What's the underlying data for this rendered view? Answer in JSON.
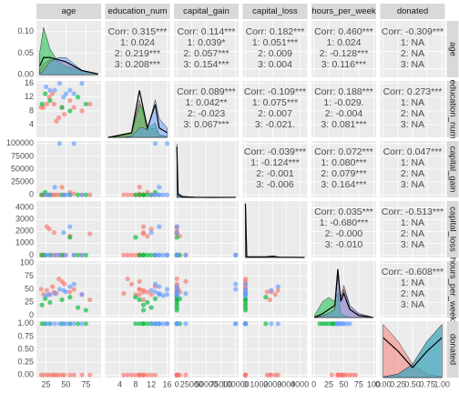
{
  "chart_data": {
    "type": "pairs",
    "group_colors": [
      "#F8766D",
      "#00BA38",
      "#619CFF"
    ],
    "variables": [
      {
        "name": "age",
        "lim": [
          13,
          94
        ],
        "ticks": [
          25,
          50,
          75
        ],
        "density": {
          "ylim": [
            -0.006,
            0.125
          ],
          "yticks": [
            {
              "value": 0,
              "label": "0.00"
            },
            {
              "value": 0.05,
              "label": "0.05"
            },
            {
              "value": 0.1,
              "label": "0.10"
            }
          ],
          "x": [
            17,
            22,
            30,
            40,
            50,
            60,
            70,
            90
          ],
          "series": [
            {
              "color": "#F8766D",
              "values": [
                0.01,
                0.025,
                0.035,
                0.035,
                0.03,
                0.02,
                0.01,
                0.002
              ]
            },
            {
              "color": "#00BA38",
              "values": [
                0.05,
                0.11,
                0.06,
                0.03,
                0.02,
                0.015,
                0.008,
                0.002
              ]
            },
            {
              "color": "#619CFF",
              "values": [
                0.002,
                0.01,
                0.03,
                0.04,
                0.04,
                0.025,
                0.01,
                0.001
              ]
            }
          ],
          "values": [
            0.02,
            0.04,
            0.04,
            0.035,
            0.03,
            0.02,
            0.01,
            0.002
          ]
        }
      },
      {
        "name": "education_num",
        "lim": [
          0.3,
          16.7
        ],
        "ticks": [
          4,
          8,
          12,
          16
        ],
        "density": {
          "ylim": [
            0,
            0.6
          ],
          "x": [
            1,
            4,
            7,
            9,
            10,
            11,
            13,
            14,
            16
          ],
          "series": [
            {
              "color": "#F8766D",
              "values": [
                0,
                0.03,
                0.05,
                0.4,
                0.25,
                0.08,
                0.1,
                0.02,
                0
              ]
            },
            {
              "color": "#00BA38",
              "values": [
                0,
                0.02,
                0.04,
                0.35,
                0.3,
                0.1,
                0.15,
                0.03,
                0.01
              ]
            },
            {
              "color": "#619CFF",
              "values": [
                0,
                0,
                0.01,
                0.1,
                0.1,
                0.08,
                0.4,
                0.2,
                0.1
              ]
            }
          ],
          "values": [
            0,
            0.02,
            0.05,
            0.5,
            0.3,
            0.1,
            0.35,
            0.1,
            0.05
          ]
        }
      },
      {
        "name": "capital_gain",
        "lim": [
          -5000,
          105000
        ],
        "ticks": [
          0,
          25000,
          50000,
          75000,
          100000
        ],
        "density": {
          "ylim": [
            0,
            1
          ],
          "x": [
            0,
            2000,
            10000,
            30000,
            60000,
            100000
          ],
          "series": [
            {
              "color": "#F8766D",
              "values": [
                0.95,
                0.04,
                0.005,
                0.001,
                0,
                0
              ]
            },
            {
              "color": "#00BA38",
              "values": [
                0.95,
                0.03,
                0.005,
                0,
                0,
                0
              ]
            },
            {
              "color": "#619CFF",
              "values": [
                0.8,
                0.08,
                0.02,
                0.005,
                0.001,
                0.003
              ]
            }
          ],
          "values": [
            0.9,
            0.05,
            0.01,
            0.002,
            0,
            0.001
          ]
        }
      },
      {
        "name": "capital_loss",
        "lim": [
          -200,
          4560
        ],
        "ticks": [
          0,
          1000,
          2000,
          3000,
          4000
        ],
        "density": {
          "ylim": [
            0,
            1
          ],
          "x": [
            0,
            100,
            1500,
            2000,
            2500,
            4356
          ],
          "series": [
            {
              "color": "#F8766D",
              "values": [
                0.94,
                0.01,
                0.01,
                0.03,
                0.005,
                0
              ]
            },
            {
              "color": "#00BA38",
              "values": [
                0.96,
                0.01,
                0.005,
                0.01,
                0.002,
                0
              ]
            },
            {
              "color": "#619CFF",
              "values": [
                0.95,
                0.01,
                0.01,
                0.02,
                0.005,
                0
              ]
            }
          ],
          "values": [
            0.95,
            0.01,
            0.01,
            0.02,
            0.005,
            0
          ]
        }
      },
      {
        "name": "hours_per_week",
        "lim": [
          -4,
          104
        ],
        "ticks": [
          0,
          25,
          50,
          75,
          100
        ],
        "density": {
          "ylim": [
            0,
            0.14
          ],
          "x": [
            1,
            15,
            25,
            35,
            40,
            45,
            50,
            60,
            75,
            99
          ],
          "series": [
            {
              "color": "#F8766D",
              "values": [
                0,
                0.005,
                0.01,
                0.02,
                0.1,
                0.05,
                0.08,
                0.03,
                0.01,
                0
              ]
            },
            {
              "color": "#00BA38",
              "values": [
                0.005,
                0.04,
                0.05,
                0.04,
                0.06,
                0.01,
                0.005,
                0,
                0,
                0
              ]
            },
            {
              "color": "#619CFF",
              "values": [
                0,
                0.005,
                0.01,
                0.02,
                0.11,
                0.05,
                0.07,
                0.03,
                0.01,
                0
              ]
            }
          ],
          "values": [
            0,
            0.01,
            0.02,
            0.03,
            0.12,
            0.04,
            0.06,
            0.02,
            0.005,
            0
          ]
        }
      },
      {
        "name": "donated",
        "lim": [
          -0.05,
          1.05
        ],
        "ticks": [
          {
            "value": 0,
            "label": "0.00"
          },
          {
            "value": 0.25,
            "label": "0.25"
          },
          {
            "value": 0.5,
            "label": "0.50"
          },
          {
            "value": 0.75,
            "label": "0.75"
          },
          {
            "value": 1,
            "label": "1.00"
          }
        ],
        "density": {
          "ylim": [
            0,
            1.7
          ],
          "x": [
            0,
            0.25,
            0.5,
            0.75,
            1
          ],
          "series": [
            {
              "color": "#F8766D",
              "values": [
                1.6,
                1.1,
                0.4,
                0.1,
                0.02
              ]
            },
            {
              "color": "#00BA38",
              "values": [
                0.02,
                0.1,
                0.4,
                1.1,
                1.6
              ]
            },
            {
              "color": "#619CFF",
              "values": [
                0.02,
                0.1,
                0.4,
                1.1,
                1.6
              ]
            }
          ],
          "values": [
            1.2,
            0.8,
            0.3,
            0.8,
            1.2
          ]
        }
      }
    ],
    "correlations": [
      [
        [
          "Corr: 0.315***",
          "1: 0.024",
          "2: 0.219***",
          "3: 0.208***"
        ],
        [
          "Corr: 0.114***",
          "1: 0.039*",
          "2: 0.057***",
          "3: 0.154***"
        ],
        [
          "Corr: 0.182***",
          "1: 0.051***",
          "2: 0.009",
          "3: 0.004"
        ],
        [
          "Corr: 0.460***",
          "1: 0.024",
          "2: -0.128***",
          "3: 0.116***"
        ],
        [
          "Corr: -0.309***",
          "1:  NA",
          "2:  NA",
          "3:  NA"
        ]
      ],
      [
        [
          "Corr: 0.089***",
          "1: 0.042**",
          "2: -0.023",
          "3: 0.067***"
        ],
        [
          "Corr: -0.109***",
          "1: 0.075***",
          "2: 0.007",
          "3: -0.021."
        ],
        [
          "Corr: 0.188***",
          "1: -0.029.",
          "2: -0.004",
          "3: 0.081***"
        ],
        [
          "Corr: 0.273***",
          "1:  NA",
          "2:  NA",
          "3:  NA"
        ]
      ],
      [
        [
          "Corr: -0.039***",
          "1: -0.124***",
          "2: -0.001",
          "3: -0.006"
        ],
        [
          "Corr: 0.072***",
          "1: 0.080***",
          "2: 0.079***",
          "3: 0.164***"
        ],
        [
          "Corr: 0.047***",
          "1:  NA",
          "2:  NA",
          "3:  NA"
        ]
      ],
      [
        [
          "Corr: 0.035***",
          "1: -0.680***",
          "2: -0.000",
          "3: -0.010"
        ],
        [
          "Corr: -0.513***",
          "1:  NA",
          "2:  NA",
          "3:  NA"
        ]
      ],
      [
        [
          "Corr: -0.608***",
          "1:  NA",
          "2:  NA",
          "3:  NA"
        ]
      ],
      []
    ],
    "samples": [
      [
        1,
        22,
        9,
        0,
        0,
        40,
        0
      ],
      [
        1,
        35,
        10,
        0,
        1900,
        45,
        0
      ],
      [
        1,
        48,
        7,
        0,
        0,
        60,
        0
      ],
      [
        1,
        60,
        9,
        2000,
        0,
        50,
        0
      ],
      [
        1,
        29,
        12,
        0,
        2200,
        40,
        0
      ],
      [
        1,
        41,
        6,
        0,
        0,
        70,
        0
      ],
      [
        1,
        55,
        11,
        5000,
        1600,
        45,
        0
      ],
      [
        1,
        70,
        8,
        0,
        0,
        40,
        0
      ],
      [
        1,
        33,
        13,
        0,
        0,
        55,
        0
      ],
      [
        1,
        26,
        10,
        0,
        2400,
        48,
        0
      ],
      [
        1,
        45,
        9,
        15000,
        0,
        65,
        0
      ],
      [
        1,
        38,
        5,
        0,
        0,
        42,
        0
      ],
      [
        1,
        80,
        10,
        0,
        1800,
        30,
        0
      ],
      [
        1,
        19,
        9,
        0,
        0,
        50,
        0
      ],
      [
        2,
        20,
        10,
        0,
        0,
        20,
        1
      ],
      [
        2,
        45,
        9,
        0,
        0,
        30,
        1
      ],
      [
        2,
        65,
        12,
        0,
        0,
        15,
        1
      ],
      [
        2,
        30,
        11,
        0,
        0,
        25,
        1
      ],
      [
        2,
        55,
        8,
        0,
        1500,
        35,
        1
      ],
      [
        2,
        75,
        10,
        0,
        0,
        10,
        1
      ],
      [
        2,
        24,
        13,
        5000,
        0,
        32,
        1
      ],
      [
        3,
        30,
        14,
        0,
        0,
        40,
        1
      ],
      [
        3,
        42,
        16,
        100000,
        0,
        50,
        1
      ],
      [
        3,
        50,
        13,
        0,
        0,
        45,
        1
      ],
      [
        3,
        25,
        15,
        0,
        0,
        38,
        1
      ],
      [
        3,
        60,
        13,
        100000,
        0,
        60,
        1
      ],
      [
        3,
        36,
        14,
        15000,
        0,
        42,
        1
      ],
      [
        3,
        47,
        12,
        0,
        1900,
        48,
        1
      ],
      [
        3,
        70,
        16,
        0,
        0,
        40,
        1
      ],
      [
        3,
        55,
        14,
        0,
        2400,
        55,
        1
      ]
    ]
  }
}
